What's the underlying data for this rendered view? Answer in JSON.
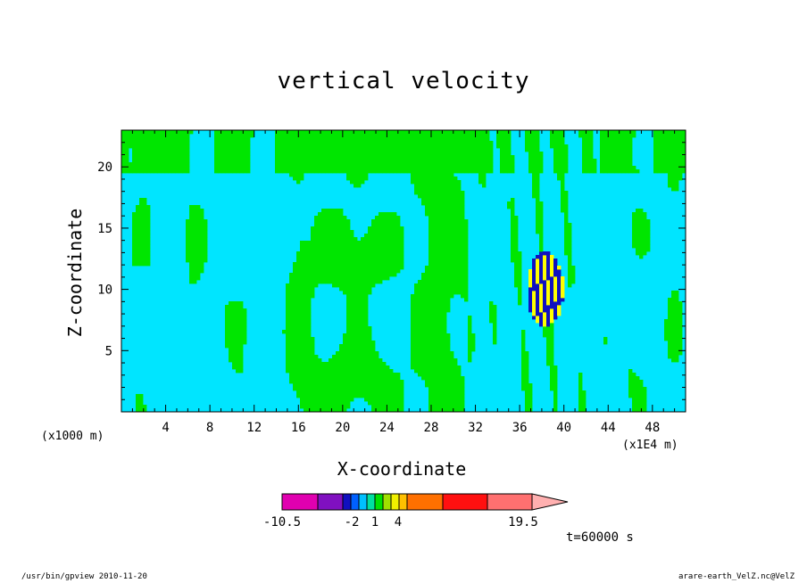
{
  "chart_data": {
    "type": "heatmap",
    "title": "vertical velocity",
    "xlabel": "X-coordinate",
    "ylabel": "Z-coordinate",
    "x_unit_label": "(x1000 m)",
    "x_scale_label": "(x1E4 m)",
    "x_ticks": [
      "4",
      "8",
      "12",
      "16",
      "20",
      "24",
      "28",
      "32",
      "36",
      "40",
      "44",
      "48"
    ],
    "y_ticks": [
      "5",
      "10",
      "15",
      "20"
    ],
    "xlim": [
      0,
      51
    ],
    "ylim": [
      0,
      23
    ],
    "colorbar": {
      "labels": [
        "-10.5",
        "-2",
        "1",
        "4",
        "19.5"
      ],
      "colors": [
        "#e000b0",
        "#8010c0",
        "#1010c0",
        "#0060ff",
        "#00c0ff",
        "#00e0a0",
        "#00e000",
        "#a0e000",
        "#f0f000",
        "#ffc000",
        "#ff7000",
        "#ff1010",
        "#ff7070",
        "#ffb0b0"
      ]
    },
    "fill_colors": {
      "negative": "#00e5ff",
      "positive": "#00e600",
      "strong_positive": "#ffff00",
      "strong_negative": "#1010c0"
    },
    "grid": false
  },
  "annotations": {
    "time": "t=60000 s",
    "footer_left": "/usr/bin/gpview   2010-11-20",
    "footer_right": "arare-earth_VelZ.nc@VelZ"
  }
}
